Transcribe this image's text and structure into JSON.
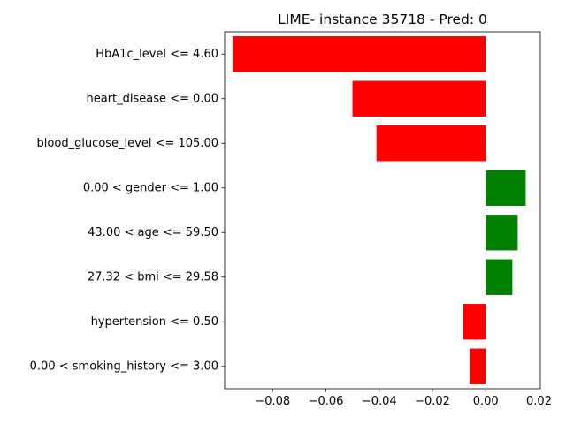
{
  "chart_data": {
    "type": "bar",
    "orientation": "horizontal",
    "title": "LIME- instance 35718 - Pred: 0",
    "xlabel": "",
    "ylabel": "",
    "xlim": [
      -0.098,
      0.0205
    ],
    "xticks": [
      -0.08,
      -0.06,
      -0.04,
      -0.02,
      0.0,
      0.02
    ],
    "xtick_labels": [
      "−0.08",
      "−0.06",
      "−0.04",
      "−0.02",
      "0.00",
      "0.02"
    ],
    "grid": false,
    "categories": [
      "HbA1c_level <= 4.60",
      "heart_disease <= 0.00",
      "blood_glucose_level <= 105.00",
      "0.00 < gender <= 1.00",
      "43.00 < age <= 59.50",
      "27.32 < bmi <= 29.58",
      "hypertension <= 0.50",
      "0.00 < smoking_history <= 3.00"
    ],
    "values": [
      -0.095,
      -0.05,
      -0.041,
      0.015,
      0.012,
      0.01,
      -0.0085,
      -0.006
    ],
    "colors": {
      "positive": "#008000",
      "negative": "#ff0000"
    }
  }
}
